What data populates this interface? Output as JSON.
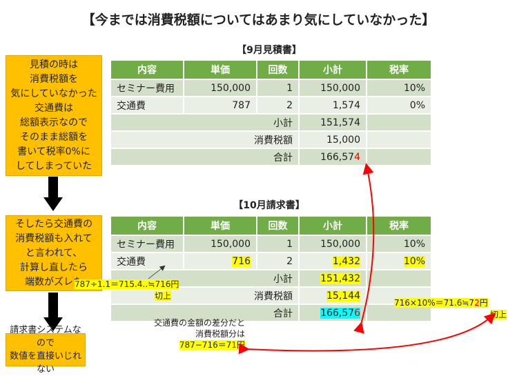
{
  "title": "【今までは消費税額についてはあまり気にしていなかった】",
  "estimate": {
    "heading": "【9月見積書】",
    "headers": [
      "内容",
      "単価",
      "回数",
      "小計",
      "税率"
    ],
    "rows": [
      [
        "セミナー費用",
        "150,000",
        "1",
        "150,000",
        "10%"
      ],
      [
        "交通費",
        "787",
        "2",
        "1,574",
        "0%"
      ]
    ],
    "subtotal_label": "小計",
    "subtotal": "151,574",
    "tax_label": "消費税額",
    "tax": "15,000",
    "total_label": "合計",
    "total_main": "166,57",
    "total_last": "4"
  },
  "invoice": {
    "heading": "【10月請求書】",
    "headers": [
      "内容",
      "単価",
      "回数",
      "小計",
      "税率"
    ],
    "rows": [
      [
        "セミナー費用",
        "150,000",
        "1",
        "150,000",
        "10%"
      ],
      [
        "交通費",
        "716",
        "2",
        "1,432",
        "10%"
      ]
    ],
    "subtotal_label": "小計",
    "subtotal": "151,432",
    "tax_label": "消費税額",
    "tax": "15,144",
    "total_label": "合計",
    "total_main": "166,57",
    "total_last": "6"
  },
  "notes": {
    "box1": [
      "見積の時は",
      "消費税額を",
      "気にしていなかった",
      "交通費は",
      "総額表示なので",
      "そのまま総額を",
      "書いて税率0%に",
      "してしまっていた"
    ],
    "box2": [
      "そしたら交通費の",
      "消費税額も入れて",
      "と言われて、",
      "計算し直したら",
      "端数がズレた"
    ],
    "box3": [
      "請求書システムなので",
      "数値を直接いじれない"
    ],
    "calc_unit": "787÷1.1＝715.4‥≒716円",
    "round_up1": "切上",
    "calc_tax": "716×10%＝71.6≒7",
    "calc_tax_red": "2",
    "calc_tax_end": "円",
    "round_up2": "切上",
    "diff1": "交通費の金額の差分だと",
    "diff2": "消費税額分は",
    "diff_calc": "787−716＝7",
    "diff_red": "1",
    "diff_end": "円"
  },
  "colors": {
    "header": "#70AD47",
    "box": "#FFC000",
    "highlight": "#FFFF00",
    "total_highlight": "#00FFFF",
    "arrow": "#FF0000"
  }
}
